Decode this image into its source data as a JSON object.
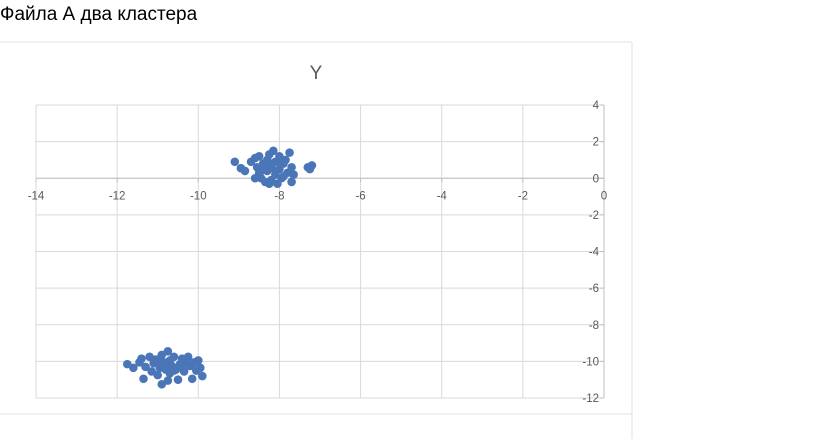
{
  "caption": "Файла А два кластера",
  "chart_data": {
    "type": "scatter",
    "title": "Y",
    "xlabel": "",
    "ylabel": "",
    "xlim": [
      -14,
      0
    ],
    "ylim": [
      -12,
      4
    ],
    "x_ticks": [
      -14,
      -12,
      -10,
      -8,
      -6,
      -4,
      -2,
      0
    ],
    "y_ticks": [
      4,
      2,
      0,
      -2,
      -4,
      -6,
      -8,
      -10,
      -12
    ],
    "grid": true,
    "legend": "none",
    "marker_color": "#4a76b8",
    "series": [
      {
        "points": [
          [
            -9.1,
            0.9
          ],
          [
            -8.95,
            0.55
          ],
          [
            -8.85,
            0.4
          ],
          [
            -8.7,
            0.9
          ],
          [
            -8.6,
            1.1
          ],
          [
            -8.55,
            0.6
          ],
          [
            -8.5,
            0.3
          ],
          [
            -8.5,
            1.2
          ],
          [
            -8.45,
            0.0
          ],
          [
            -8.4,
            0.8
          ],
          [
            -8.35,
            -0.2
          ],
          [
            -8.3,
            1.0
          ],
          [
            -8.3,
            0.4
          ],
          [
            -8.25,
            1.3
          ],
          [
            -8.2,
            -0.1
          ],
          [
            -8.2,
            0.7
          ],
          [
            -8.15,
            1.5
          ],
          [
            -8.1,
            0.2
          ],
          [
            -8.1,
            0.9
          ],
          [
            -8.05,
            -0.3
          ],
          [
            -8.0,
            1.2
          ],
          [
            -8.0,
            0.5
          ],
          [
            -7.95,
            0.0
          ],
          [
            -7.9,
            0.8
          ],
          [
            -7.85,
            1.0
          ],
          [
            -7.8,
            0.3
          ],
          [
            -7.75,
            1.4
          ],
          [
            -7.7,
            0.6
          ],
          [
            -7.7,
            -0.2
          ],
          [
            -7.65,
            0.2
          ],
          [
            -8.45,
            0.4
          ],
          [
            -8.6,
            -0.0
          ],
          [
            -8.25,
            -0.3
          ],
          [
            -7.3,
            0.6
          ],
          [
            -7.25,
            0.5
          ],
          [
            -7.2,
            0.7
          ],
          [
            -8.1,
            0.4
          ],
          [
            -8.35,
            0.8
          ],
          [
            -8.0,
            0.9
          ],
          [
            -7.9,
            0.1
          ],
          [
            -11.75,
            -10.15
          ],
          [
            -11.6,
            -10.35
          ],
          [
            -11.45,
            -10.05
          ],
          [
            -11.4,
            -9.85
          ],
          [
            -11.35,
            -10.95
          ],
          [
            -11.3,
            -10.3
          ],
          [
            -11.2,
            -9.75
          ],
          [
            -11.15,
            -10.55
          ],
          [
            -11.1,
            -10.1
          ],
          [
            -11.05,
            -9.9
          ],
          [
            -11.0,
            -10.75
          ],
          [
            -10.95,
            -10.35
          ],
          [
            -10.9,
            -9.65
          ],
          [
            -10.9,
            -11.25
          ],
          [
            -10.85,
            -10.05
          ],
          [
            -10.8,
            -10.45
          ],
          [
            -10.75,
            -9.45
          ],
          [
            -10.75,
            -11.05
          ],
          [
            -10.7,
            -9.95
          ],
          [
            -10.7,
            -10.65
          ],
          [
            -10.65,
            -10.25
          ],
          [
            -10.6,
            -9.75
          ],
          [
            -10.55,
            -10.45
          ],
          [
            -10.5,
            -11.0
          ],
          [
            -10.45,
            -10.15
          ],
          [
            -10.4,
            -9.85
          ],
          [
            -10.35,
            -10.55
          ],
          [
            -10.3,
            -10.05
          ],
          [
            -10.25,
            -9.75
          ],
          [
            -10.2,
            -10.25
          ],
          [
            -10.15,
            -10.95
          ],
          [
            -10.1,
            -10.05
          ],
          [
            -10.05,
            -10.5
          ],
          [
            -10.0,
            -9.95
          ],
          [
            -9.95,
            -10.35
          ],
          [
            -9.9,
            -10.8
          ],
          [
            -10.85,
            -10.2
          ],
          [
            -10.6,
            -10.5
          ],
          [
            -11.0,
            -10.0
          ],
          [
            -10.4,
            -10.3
          ]
        ]
      }
    ]
  }
}
